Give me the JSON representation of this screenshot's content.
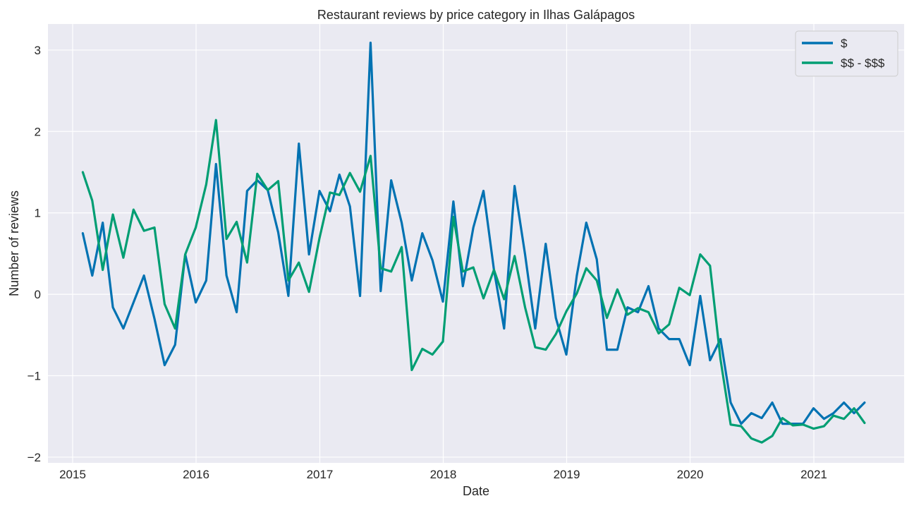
{
  "chart_data": {
    "type": "line",
    "title": "Restaurant reviews by price category in Ilhas Galápagos",
    "xlabel": "Date",
    "ylabel": "Number of reviews",
    "xlim": [
      "2014-10-20",
      "2021-09-25"
    ],
    "ylim": [
      -2.07,
      3.32
    ],
    "x_ticks": [
      {
        "date": "2015-01-01",
        "label": "2015"
      },
      {
        "date": "2016-01-01",
        "label": "2016"
      },
      {
        "date": "2017-01-01",
        "label": "2017"
      },
      {
        "date": "2018-01-01",
        "label": "2018"
      },
      {
        "date": "2019-01-01",
        "label": "2019"
      },
      {
        "date": "2020-01-01",
        "label": "2020"
      },
      {
        "date": "2021-01-01",
        "label": "2021"
      }
    ],
    "y_ticks": [
      {
        "value": -2,
        "label": "−2"
      },
      {
        "value": -1,
        "label": "−1"
      },
      {
        "value": 0,
        "label": "0"
      },
      {
        "value": 1,
        "label": "1"
      },
      {
        "value": 2,
        "label": "2"
      },
      {
        "value": 3,
        "label": "3"
      }
    ],
    "grid": true,
    "legend_position": "top-right",
    "x": [
      "2015-01-31",
      "2015-02-28",
      "2015-03-31",
      "2015-04-30",
      "2015-05-31",
      "2015-06-30",
      "2015-07-31",
      "2015-08-31",
      "2015-09-30",
      "2015-10-31",
      "2015-11-30",
      "2015-12-31",
      "2016-01-31",
      "2016-02-29",
      "2016-03-31",
      "2016-04-30",
      "2016-05-31",
      "2016-06-30",
      "2016-07-31",
      "2016-08-31",
      "2016-09-30",
      "2016-10-31",
      "2016-11-30",
      "2016-12-31",
      "2017-01-31",
      "2017-02-28",
      "2017-03-31",
      "2017-04-30",
      "2017-05-31",
      "2017-06-30",
      "2017-07-31",
      "2017-08-31",
      "2017-09-30",
      "2017-10-31",
      "2017-11-30",
      "2017-12-31",
      "2018-01-31",
      "2018-02-28",
      "2018-03-31",
      "2018-04-30",
      "2018-05-31",
      "2018-06-30",
      "2018-07-31",
      "2018-08-31",
      "2018-09-30",
      "2018-10-31",
      "2018-11-30",
      "2018-12-31",
      "2019-01-31",
      "2019-02-28",
      "2019-03-31",
      "2019-04-30",
      "2019-05-31",
      "2019-06-30",
      "2019-07-31",
      "2019-08-31",
      "2019-09-30",
      "2019-10-31",
      "2019-11-30",
      "2019-12-31",
      "2020-01-31",
      "2020-02-29",
      "2020-03-31",
      "2020-04-30",
      "2020-05-31",
      "2020-06-30",
      "2020-07-31",
      "2020-08-31",
      "2020-09-30",
      "2020-10-31",
      "2020-11-30",
      "2020-12-31",
      "2021-01-31",
      "2021-02-28",
      "2021-03-31",
      "2021-04-30",
      "2021-05-31"
    ],
    "series": [
      {
        "name": "$",
        "color": "#0072b2",
        "values": [
          0.75,
          0.23,
          0.88,
          -0.16,
          -0.42,
          -0.1,
          0.23,
          -0.3,
          -0.87,
          -0.62,
          0.49,
          -0.1,
          0.17,
          1.6,
          0.23,
          -0.22,
          1.27,
          1.4,
          1.28,
          0.76,
          -0.02,
          1.85,
          0.49,
          1.27,
          1.02,
          1.47,
          1.08,
          -0.02,
          3.09,
          0.04,
          1.4,
          0.88,
          0.17,
          0.75,
          0.42,
          -0.09,
          1.14,
          0.1,
          0.82,
          1.27,
          0.3,
          -0.42,
          1.33,
          0.49,
          -0.42,
          0.62,
          -0.29,
          -0.74,
          0.23,
          0.88,
          0.43,
          -0.68,
          -0.68,
          -0.16,
          -0.22,
          0.1,
          -0.42,
          -0.55,
          -0.55,
          -0.87,
          -0.02,
          -0.81,
          -0.55,
          -1.33,
          -1.59,
          -1.46,
          -1.52,
          -1.33,
          -1.59,
          -1.59,
          -1.59,
          -1.4,
          -1.53,
          -1.46,
          -1.33,
          -1.46,
          -1.33
        ]
      },
      {
        "name": "$$ - $$$",
        "color": "#009e73",
        "values": [
          1.5,
          1.15,
          0.3,
          0.98,
          0.45,
          1.04,
          0.78,
          0.82,
          -0.12,
          -0.42,
          0.49,
          0.82,
          1.35,
          2.14,
          0.68,
          0.89,
          0.39,
          1.48,
          1.28,
          1.39,
          0.17,
          0.39,
          0.03,
          0.69,
          1.25,
          1.22,
          1.49,
          1.26,
          1.7,
          0.32,
          0.28,
          0.58,
          -0.93,
          -0.67,
          -0.74,
          -0.58,
          0.95,
          0.28,
          0.33,
          -0.05,
          0.3,
          -0.06,
          0.47,
          -0.16,
          -0.65,
          -0.68,
          -0.49,
          -0.21,
          0.01,
          0.32,
          0.17,
          -0.29,
          0.06,
          -0.25,
          -0.17,
          -0.22,
          -0.48,
          -0.37,
          0.08,
          -0.01,
          0.49,
          0.35,
          -0.8,
          -1.6,
          -1.62,
          -1.77,
          -1.82,
          -1.74,
          -1.52,
          -1.61,
          -1.6,
          -1.65,
          -1.62,
          -1.49,
          -1.53,
          -1.4,
          -1.58
        ]
      }
    ]
  }
}
